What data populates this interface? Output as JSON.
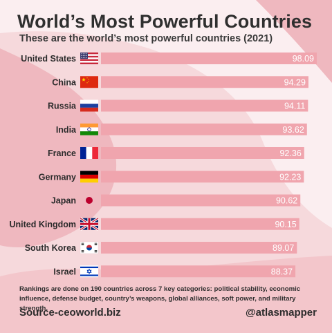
{
  "title": "World’s Most Powerful Countries",
  "subtitle": "These are the world’s most powerful countries (2021)",
  "note": "Rankings are done on 190 countries across 7 key categories: political stability, economic influence, defense budget, country’s weapons, global alliances, soft power, and military strength.",
  "source": "Source-ceoworld.biz",
  "handle": "@atlasmapper",
  "colors": {
    "background": "#f6d9dc",
    "blob_light": "#fbeef0",
    "blob_pink": "#efb8bf",
    "bar": "#f0a5ae",
    "bar_text": "#ffffff"
  },
  "chart_data": {
    "type": "bar",
    "orientation": "horizontal",
    "categories": [
      "United States",
      "China",
      "Russia",
      "India",
      "France",
      "Germany",
      "Japan",
      "United Kingdom",
      "South Korea",
      "Israel"
    ],
    "values": [
      98.09,
      94.29,
      94.11,
      93.62,
      92.36,
      92.23,
      90.62,
      90.15,
      89.07,
      88.37
    ],
    "flags": [
      "flag-us-icon",
      "flag-cn-icon",
      "flag-ru-icon",
      "flag-in-icon",
      "flag-fr-icon",
      "flag-de-icon",
      "flag-jp-icon",
      "flag-gb-icon",
      "flag-kr-icon",
      "flag-il-icon"
    ],
    "title": "World’s Most Powerful Countries",
    "xlabel": "",
    "ylabel": "",
    "grid": false,
    "legend": "none"
  }
}
